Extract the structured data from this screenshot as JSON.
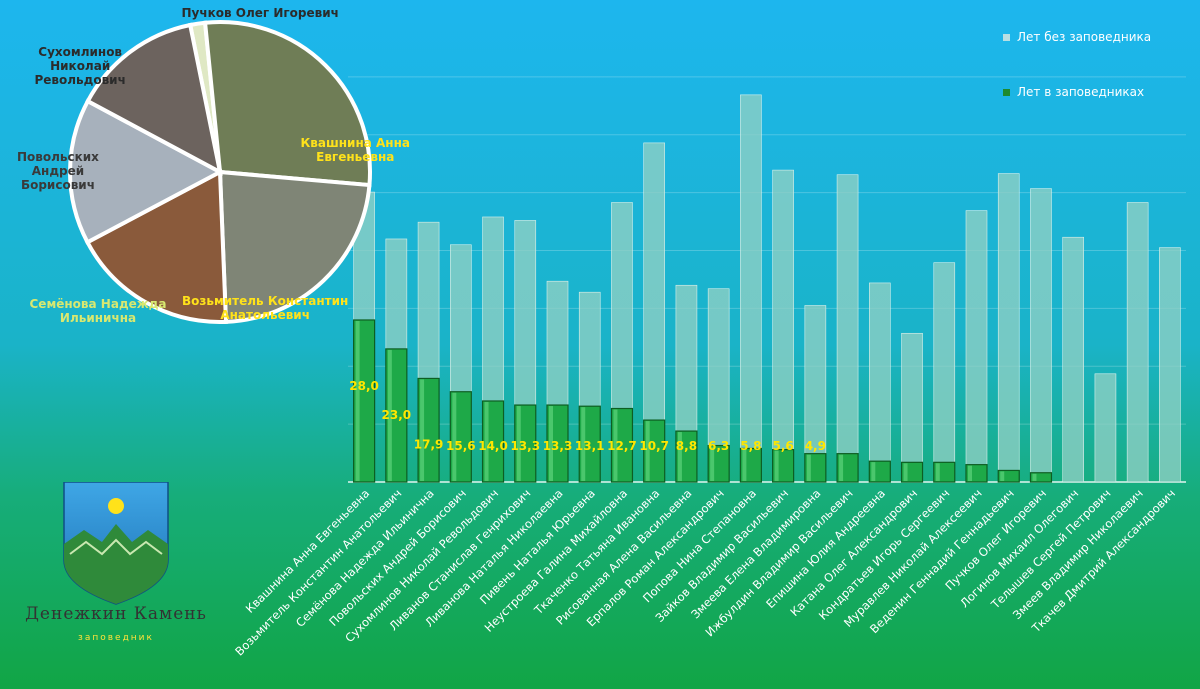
{
  "chart_data": {
    "type": "bar",
    "stacked": true,
    "legend": [
      "Лет без заповедника",
      "Лет в заповедниках"
    ],
    "legend_position": "top-right",
    "categories": [
      "Квашнина Анна Евгеньевна",
      "Возьмитель Константин Анатольевич",
      "Семёнова Надежда Ильинична",
      "Повольских Андрей Борисович",
      "Сухомлинов Николай Револьдович",
      "Ливанов Станислав Генрихович",
      "Ливанова Наталья Николаевна",
      "Пивень Наталья Юрьевна",
      "Неустроева Галина Михайловна",
      "Ткаченко Татьяна Ивановна",
      "Рисованная Алена Васильевна",
      "Ерпалов Роман Александрович",
      "Попова Нина Степановна",
      "Зайков Владимир Васильевич",
      "Змеева Елена Владимировна",
      "Ижбулдин Владимир Васильевич",
      "Епишина Юлия Андреевна",
      "Катана Олег Александрович",
      "Кондратьев Игорь Сергеевич",
      "Муравлев Николай Алексеевич",
      "Веденин Геннадий Геннадьевич",
      "Пучков Олег Игоревич",
      "Логинов Михаил Олегович",
      "Телышев Сергей Петрович",
      "Змеев Владимир Николаевич",
      "Ткачев Дмитрий Александрович"
    ],
    "series": [
      {
        "name": "Лет в заповедниках",
        "values": [
          28.0,
          23.0,
          17.9,
          15.6,
          14.0,
          13.3,
          13.3,
          13.1,
          12.7,
          10.7,
          8.8,
          6.3,
          5.8,
          5.6,
          4.9,
          4.9,
          3.6,
          3.4,
          3.4,
          3.0,
          2.0,
          1.6,
          0,
          0,
          0,
          0
        ]
      },
      {
        "name": "Лет без заповедника",
        "values": [
          22.1,
          19.0,
          27.0,
          25.4,
          31.8,
          31.9,
          21.4,
          19.7,
          35.6,
          47.9,
          25.2,
          27.1,
          61.1,
          48.3,
          25.6,
          48.2,
          30.8,
          22.3,
          34.5,
          43.9,
          51.3,
          49.1,
          42.3,
          18.7,
          48.3,
          40.5
        ]
      }
    ],
    "data_labels": [
      "28,0",
      "23,0",
      "17,9",
      "15,6",
      "14,0",
      "13,3",
      "13,3",
      "13,1",
      "12,7",
      "10,7",
      "8,8",
      "6,3",
      "5,8",
      "5,6",
      "4,9"
    ],
    "ylim": [
      0,
      75
    ],
    "grid": true,
    "pie": {
      "type": "pie",
      "slices": [
        {
          "label": "Пучков Олег Игоревич",
          "value": 1.6,
          "color": "#dfe8c4"
        },
        {
          "label": "Квашнина Анна Евгеньевна",
          "value": 28.0,
          "color": "#6f7d56"
        },
        {
          "label": "Возьмитель Константин Анатольевич",
          "value": 23.0,
          "color": "#7f8576"
        },
        {
          "label": "Семёнова Надежда Ильинична",
          "value": 17.9,
          "color": "#8a5a3b"
        },
        {
          "label": "Повольских Андрей Борисович",
          "value": 15.6,
          "color": "#a7b1bc"
        },
        {
          "label": "Сухомлинов Николай Револьдович",
          "value": 14.0,
          "color": "#6c635e"
        }
      ]
    }
  },
  "pie_labels": [
    {
      "lines": [
        "Пучков Олег Игоревич"
      ],
      "color": "#2b2b2b"
    },
    {
      "lines": [
        "Квашнина Анна",
        "Евгеньевна"
      ],
      "color": "#ffe21a"
    },
    {
      "lines": [
        "Возьмитель Константин",
        "Анатольевич"
      ],
      "color": "#ffe21a"
    },
    {
      "lines": [
        "Семёнова Надежда",
        "Ильинична"
      ],
      "color": "#d8e870"
    },
    {
      "lines": [
        "Повольских",
        "Андрей",
        "Борисович"
      ],
      "color": "#3a3a3a"
    },
    {
      "lines": [
        "Сухомлинов",
        "Николай",
        "Револьдович"
      ],
      "color": "#2b2b2b"
    }
  ],
  "logo": {
    "name": "Денежкин Камень",
    "subtitle": "заповедник"
  },
  "colors": {
    "background_top": "#1fb2e6",
    "background_bottom": "#13a44a",
    "bar_in_reserve": "#1ea948",
    "bar_without_reserve": "#8fcfc3",
    "data_label": "#ffe600"
  }
}
